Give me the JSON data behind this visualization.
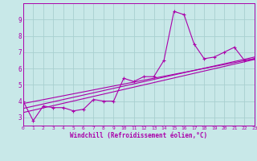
{
  "background_color": "#c8e8e8",
  "grid_color": "#a8d0d0",
  "line_color": "#aa00aa",
  "xlabel": "Windchill (Refroidissement éolien,°C)",
  "xlim": [
    0,
    23
  ],
  "ylim": [
    2.5,
    10
  ],
  "yticks": [
    3,
    4,
    5,
    6,
    7,
    8,
    9
  ],
  "xticks": [
    0,
    1,
    2,
    3,
    4,
    5,
    6,
    7,
    8,
    9,
    10,
    11,
    12,
    13,
    14,
    15,
    16,
    17,
    18,
    19,
    20,
    21,
    22,
    23
  ],
  "series1_x": [
    0,
    1,
    2,
    3,
    4,
    5,
    6,
    7,
    8,
    9,
    10,
    11,
    12,
    13,
    14,
    15,
    16,
    17,
    18,
    19,
    20,
    21,
    22,
    23
  ],
  "series1_y": [
    4.0,
    2.8,
    3.7,
    3.6,
    3.6,
    3.4,
    3.5,
    4.1,
    4.0,
    4.0,
    5.4,
    5.2,
    5.5,
    5.5,
    6.5,
    9.5,
    9.3,
    7.5,
    6.6,
    6.7,
    7.0,
    7.3,
    6.5,
    6.6
  ],
  "trend1_x": [
    0,
    23
  ],
  "trend1_y": [
    3.3,
    6.55
  ],
  "trend2_x": [
    0,
    23
  ],
  "trend2_y": [
    3.55,
    6.7
  ],
  "trend3_x": [
    0,
    23
  ],
  "trend3_y": [
    3.85,
    6.6
  ]
}
